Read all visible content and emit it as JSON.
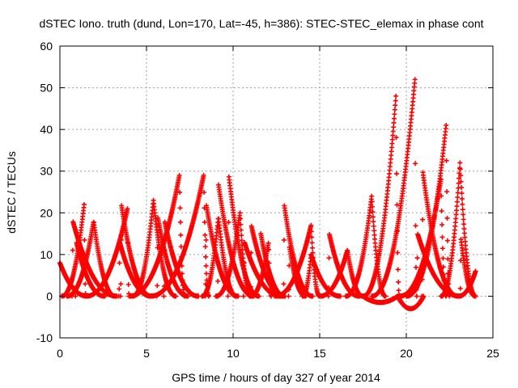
{
  "chart_data": {
    "type": "scatter",
    "title": "dSTEC Iono. truth (dund, Lon=170, Lat=-45, h=386): STEC-STEC_elemax in phase cont",
    "xlabel": "GPS time / hours of day 327 of year 2014",
    "ylabel": "dSTEC  / TECUs",
    "xlim": [
      0,
      25
    ],
    "ylim": [
      -10,
      60
    ],
    "xticks": [
      "0",
      "5",
      "10",
      "15",
      "20",
      "25"
    ],
    "yticks": [
      "-10",
      "0",
      "10",
      "20",
      "30",
      "40",
      "50",
      "60"
    ],
    "grid": true,
    "marker": "+",
    "color": "#ff0000",
    "passes": [
      {
        "start": 0.0,
        "end": 1.6,
        "peak": 0.0,
        "max": 8
      },
      {
        "start": 0.7,
        "end": 3.3,
        "peak": 0.75,
        "max": 18
      },
      {
        "start": 0.1,
        "end": 1.5,
        "peak": 1.4,
        "max": 22
      },
      {
        "start": 0.9,
        "end": 2.6,
        "peak": 0.95,
        "max": 13
      },
      {
        "start": 0.4,
        "end": 3.2,
        "peak": 1.95,
        "max": 18
      },
      {
        "start": 3.4,
        "end": 5.3,
        "peak": 3.45,
        "max": 13
      },
      {
        "start": 3.5,
        "end": 5.3,
        "peak": 3.55,
        "max": 22
      },
      {
        "start": 1.5,
        "end": 4.0,
        "peak": 3.9,
        "max": 21
      },
      {
        "start": 4.2,
        "end": 6.7,
        "peak": 5.4,
        "max": 23
      },
      {
        "start": 5.6,
        "end": 7.4,
        "peak": 5.65,
        "max": 19
      },
      {
        "start": 6.0,
        "end": 8.0,
        "peak": 6.05,
        "max": 18
      },
      {
        "start": 4.0,
        "end": 7.2,
        "peak": 6.9,
        "max": 29
      },
      {
        "start": 8.4,
        "end": 10.3,
        "peak": 8.45,
        "max": 22
      },
      {
        "start": 5.2,
        "end": 8.6,
        "peak": 8.3,
        "max": 29
      },
      {
        "start": 8.2,
        "end": 10.2,
        "peak": 9.15,
        "max": 19
      },
      {
        "start": 9.1,
        "end": 11.2,
        "peak": 9.15,
        "max": 27
      },
      {
        "start": 9.7,
        "end": 11.5,
        "peak": 9.75,
        "max": 29
      },
      {
        "start": 9.0,
        "end": 11.0,
        "peak": 10.4,
        "max": 20
      },
      {
        "start": 10.6,
        "end": 12.8,
        "peak": 10.65,
        "max": 13
      },
      {
        "start": 11.0,
        "end": 13.0,
        "peak": 11.05,
        "max": 17
      },
      {
        "start": 11.6,
        "end": 13.0,
        "peak": 11.6,
        "max": 15
      },
      {
        "start": 11.0,
        "end": 12.2,
        "peak": 12.05,
        "max": 13
      },
      {
        "start": 12.9,
        "end": 14.6,
        "peak": 12.95,
        "max": 22
      },
      {
        "start": 13.2,
        "end": 14.2,
        "peak": 13.25,
        "max": 12
      },
      {
        "start": 12.4,
        "end": 15.0,
        "peak": 14.5,
        "max": 17
      },
      {
        "start": 14.0,
        "end": 16.2,
        "peak": 14.5,
        "max": 10
      },
      {
        "start": 15.5,
        "end": 17.3,
        "peak": 15.55,
        "max": 15
      },
      {
        "start": 15.0,
        "end": 17.5,
        "peak": 16.6,
        "max": 11
      },
      {
        "start": 16.5,
        "end": 18.8,
        "peak": 18.0,
        "max": 24
      },
      {
        "start": 17.5,
        "end": 19.6,
        "peak": 19.4,
        "max": 48
      },
      {
        "start": 18.0,
        "end": 20.6,
        "peak": 20.5,
        "max": 52
      },
      {
        "start": 19.6,
        "end": 22.3,
        "peak": 22.0,
        "max": 28
      },
      {
        "start": 20.0,
        "end": 22.5,
        "peak": 22.3,
        "max": 41
      },
      {
        "start": 20.9,
        "end": 23.0,
        "peak": 20.95,
        "max": 30
      },
      {
        "start": 20.6,
        "end": 23.1,
        "peak": 20.65,
        "max": 15
      },
      {
        "start": 22.0,
        "end": 24.0,
        "peak": 23.1,
        "max": 32
      },
      {
        "start": 23.1,
        "end": 24.0,
        "peak": 23.15,
        "max": 14
      },
      {
        "start": 23.0,
        "end": 24.0,
        "peak": 24.0,
        "max": 6
      }
    ],
    "dips": [
      {
        "start": 17.5,
        "end": 19.5,
        "min": -1.5
      },
      {
        "start": 19.5,
        "end": 21.0,
        "min": -3
      }
    ]
  }
}
